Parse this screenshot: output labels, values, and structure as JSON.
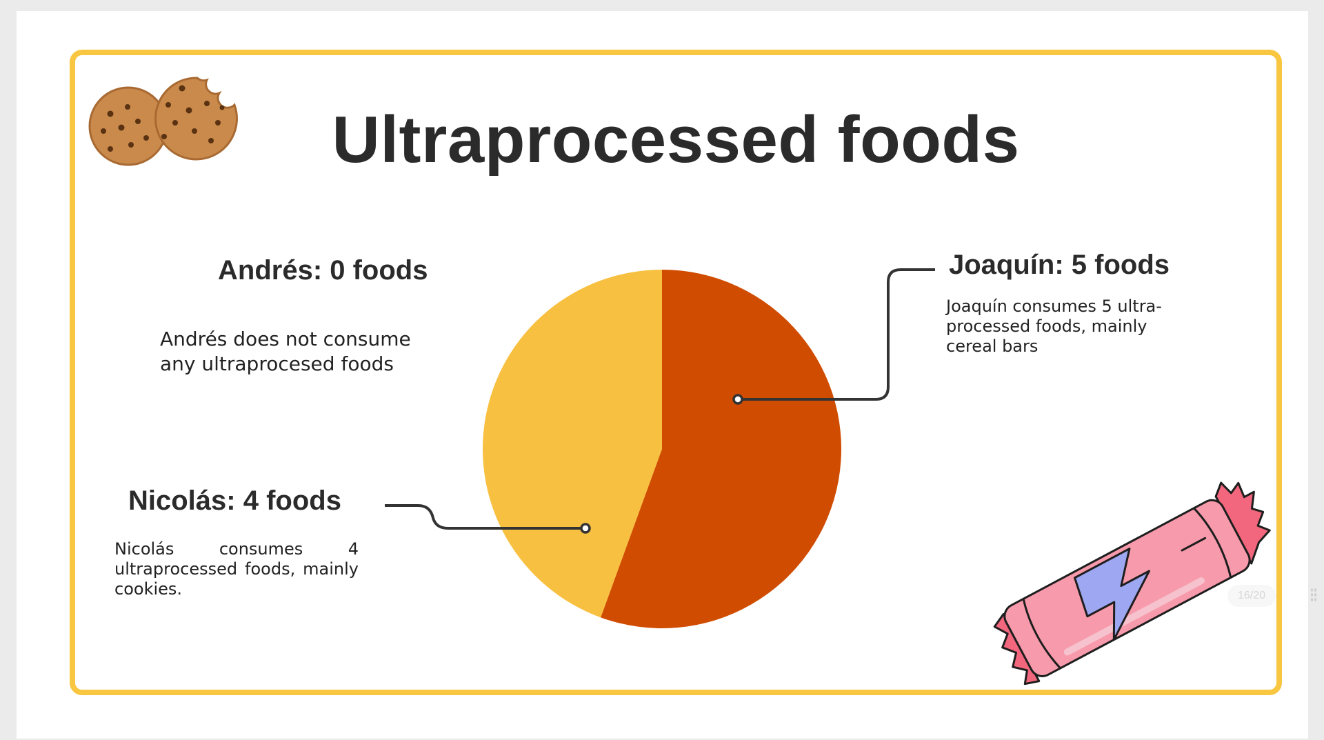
{
  "slide": {
    "title": "Ultraprocessed foods",
    "page_indicator": "16/20"
  },
  "colors": {
    "frame": "#f8c640",
    "joaquin_slice": "#d04c00",
    "nicolas_slice": "#f8c040"
  },
  "icons": {
    "top_left": "cookies-icon",
    "bottom_right": "cereal-bar-icon"
  },
  "people": {
    "andres": {
      "label": "Andrés: 0  foods",
      "description": "Andrés does not consume any  ultraprocesed foods"
    },
    "joaquin": {
      "label": "Joaquín: 5 foods",
      "description": "Joaquín consumes 5 ultra-processed foods, mainly cereal bars"
    },
    "nicolas": {
      "label": "Nicolás: 4 foods",
      "description": "Nicolás consumes 4 ultraprocessed foods, mainly cookies."
    }
  },
  "chart_data": {
    "type": "pie",
    "title": "Ultraprocessed foods",
    "categories": [
      "Andrés",
      "Joaquín",
      "Nicolás"
    ],
    "values": [
      0,
      5,
      4
    ],
    "colors": [
      "#f8c640",
      "#d04c00",
      "#f8c040"
    ],
    "legend": "none"
  }
}
